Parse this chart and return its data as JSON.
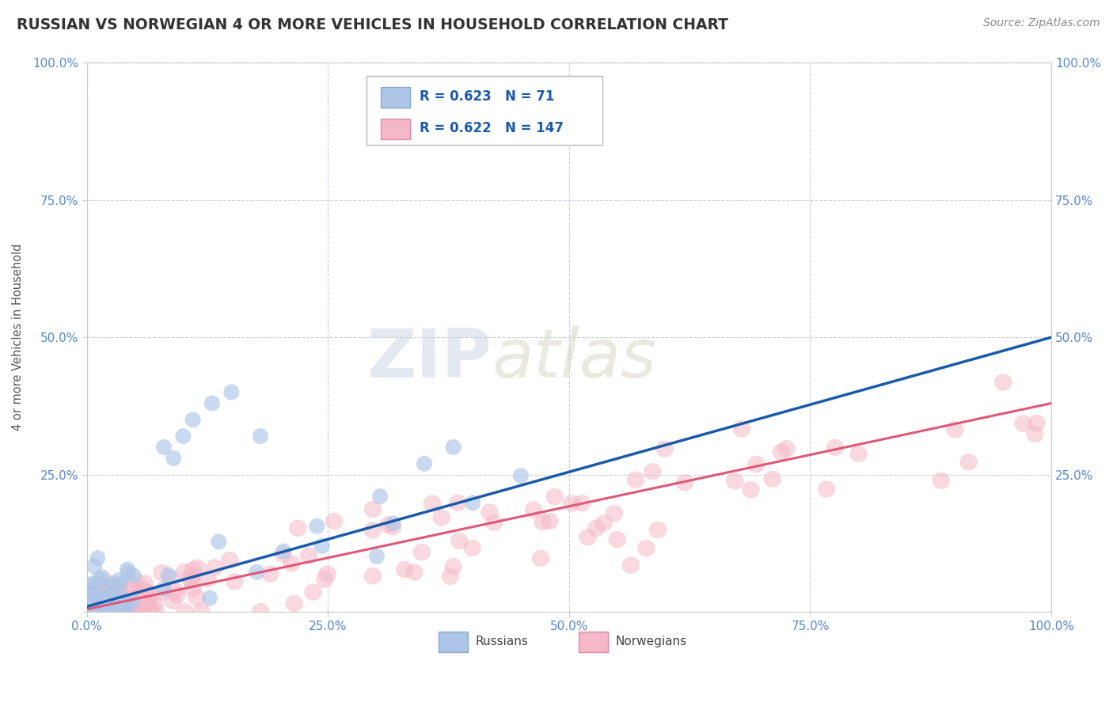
{
  "title": "RUSSIAN VS NORWEGIAN 4 OR MORE VEHICLES IN HOUSEHOLD CORRELATION CHART",
  "source": "Source: ZipAtlas.com",
  "ylabel": "4 or more Vehicles in Household",
  "xlim": [
    0,
    1.0
  ],
  "ylim": [
    0,
    1.0
  ],
  "xticks": [
    0.0,
    0.25,
    0.5,
    0.75,
    1.0
  ],
  "yticks": [
    0.0,
    0.25,
    0.5,
    0.75,
    1.0
  ],
  "xtick_labels": [
    "0.0%",
    "25.0%",
    "50.0%",
    "75.0%",
    "100.0%"
  ],
  "ytick_labels": [
    "",
    "25.0%",
    "50.0%",
    "75.0%",
    "100.0%"
  ],
  "right_ytick_labels": [
    "",
    "25.0%",
    "50.0%",
    "75.0%",
    "100.0%"
  ],
  "russian_R": 0.623,
  "russian_N": 71,
  "norwegian_R": 0.622,
  "norwegian_N": 147,
  "russian_color": "#adc6e8",
  "norwegian_color": "#f5b8c8",
  "russian_line_color": "#1a5aaa",
  "norwegian_line_color": "#e05878",
  "watermark_zip": "ZIP",
  "watermark_atlas": "atlas",
  "background_color": "#ffffff",
  "grid_color": "#c8c8d8",
  "tick_color": "#5588cc",
  "title_color": "#333333",
  "source_color": "#888888",
  "legend_text_color": "#1a5aaa",
  "legend_N_color": "#e03060",
  "ylabel_color": "#555555",
  "ru_line_start_x": 0.0,
  "ru_line_start_y": 0.01,
  "ru_line_end_x": 1.0,
  "ru_line_end_y": 0.5,
  "no_line_start_x": 0.0,
  "no_line_start_y": 0.005,
  "no_line_end_x": 1.0,
  "no_line_end_y": 0.38
}
